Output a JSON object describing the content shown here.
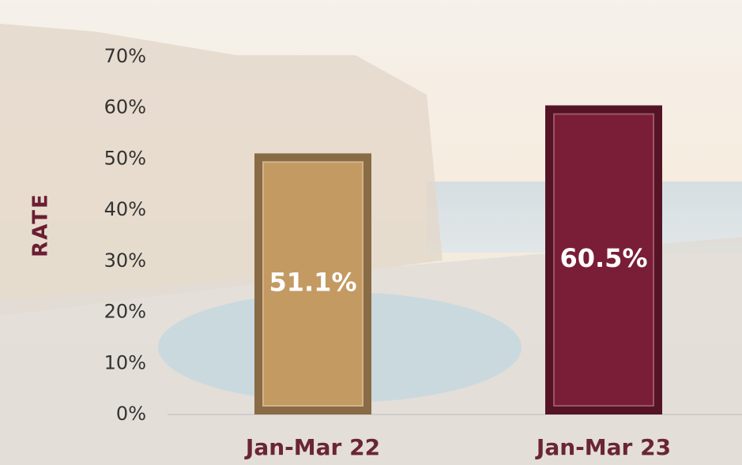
{
  "chart_data": {
    "type": "bar",
    "y_label": "RATE",
    "categories": [
      "Jan-Mar 22",
      "Jan-Mar 23"
    ],
    "values": [
      51.1,
      60.5
    ],
    "value_labels": [
      "51.1%",
      "60.5%"
    ],
    "colors": [
      "#c49a63",
      "#7a1d36"
    ],
    "ylim": [
      0,
      70
    ],
    "yticks": [
      {
        "value": 0,
        "label": "0%"
      },
      {
        "value": 10,
        "label": "10%"
      },
      {
        "value": 20,
        "label": "20%"
      },
      {
        "value": 30,
        "label": "30%"
      },
      {
        "value": 40,
        "label": "40%"
      },
      {
        "value": 50,
        "label": "50%"
      },
      {
        "value": 60,
        "label": "60%"
      },
      {
        "value": 70,
        "label": "70%"
      }
    ],
    "grid": false
  }
}
